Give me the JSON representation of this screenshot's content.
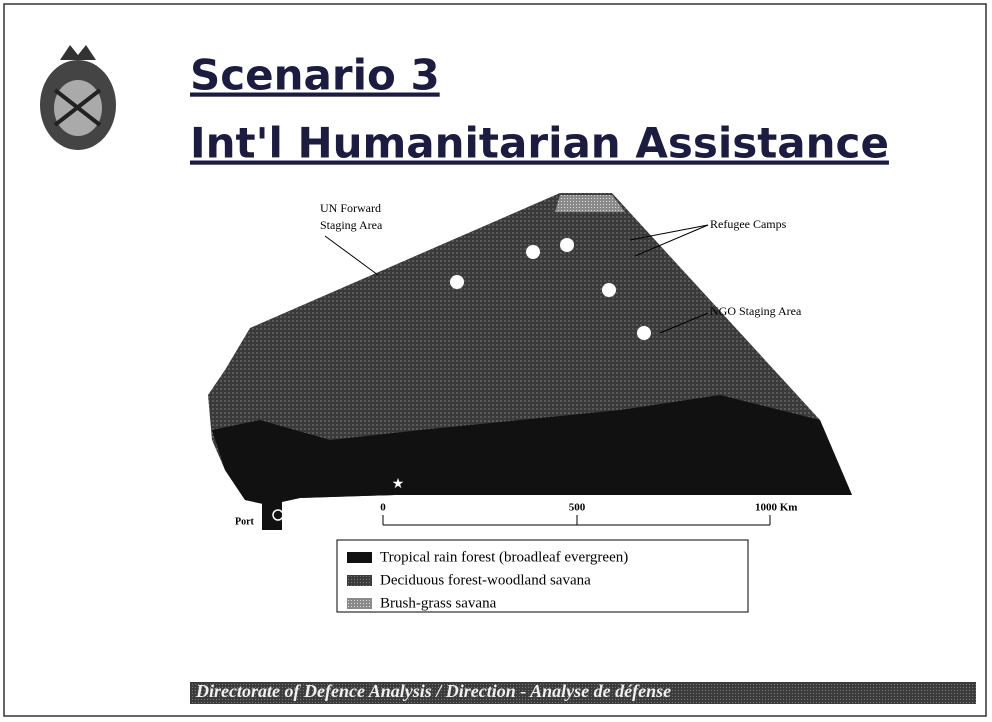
{
  "header": {
    "title_line1": "Scenario 3",
    "title_line2": "Int'l Humanitarian Assistance"
  },
  "map": {
    "labels": {
      "un_staging_line1": "UN Forward",
      "un_staging_line2": "Staging Area",
      "refugee_camps": "Refugee Camps",
      "ngo_staging": "NGO Staging Area",
      "port": "Port"
    },
    "scale": {
      "ticks": [
        "0",
        "500",
        "1000 Km"
      ]
    }
  },
  "legend": {
    "items": [
      "Tropical rain forest (broadleaf evergreen)",
      "Deciduous forest-woodland savana",
      "Brush-grass savana"
    ]
  },
  "footer": {
    "text": "Directorate of Defence Analysis / Direction - Analyse de défense"
  }
}
